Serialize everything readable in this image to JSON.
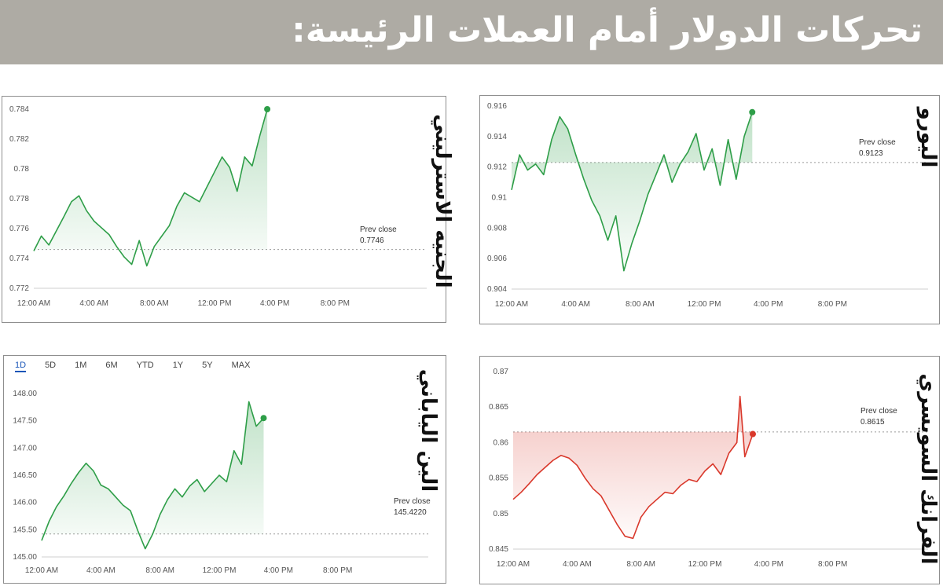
{
  "header": {
    "title": "تحركات الدولار أمام العملات الرئيسة:"
  },
  "colors": {
    "up": "#2e9e48",
    "down": "#d9382b",
    "banner": "#aeaba4"
  },
  "range_tabs": [
    "1D",
    "5D",
    "1M",
    "6M",
    "YTD",
    "1Y",
    "5Y",
    "MAX"
  ],
  "chart_data": [
    {
      "id": "gbp",
      "type": "line",
      "label": "الجنيه الاسترليني",
      "prev_close_label": "Prev close",
      "prev_close_text": "0.7746",
      "prev_close": 0.7746,
      "ylim": [
        0.772,
        0.784
      ],
      "yticks": [
        "0.772",
        "0.774",
        "0.776",
        "0.778",
        "0.78",
        "0.782",
        "0.784"
      ],
      "xticks": [
        "12:00 AM",
        "4:00 AM",
        "8:00 AM",
        "12:00 PM",
        "4:00 PM",
        "8:00 PM"
      ],
      "x_hours": [
        0,
        0.5,
        1,
        2,
        2.5,
        3,
        3.5,
        4,
        5,
        5.5,
        6,
        6.5,
        7,
        7.5,
        8,
        8.5,
        9,
        9.5,
        10,
        11,
        12,
        12.5,
        13,
        13.5,
        14,
        14.5,
        15,
        15.5
      ],
      "values": [
        0.7745,
        0.7755,
        0.7749,
        0.7768,
        0.7778,
        0.7782,
        0.7772,
        0.7765,
        0.7756,
        0.7748,
        0.7741,
        0.7736,
        0.7752,
        0.7735,
        0.7748,
        0.7755,
        0.7762,
        0.7775,
        0.7784,
        0.7778,
        0.7798,
        0.7808,
        0.7801,
        0.7785,
        0.7808,
        0.7802,
        0.7822,
        0.784
      ],
      "color": "up"
    },
    {
      "id": "eur",
      "type": "line",
      "label": "اليورو",
      "prev_close_label": "Prev close",
      "prev_close_text": "0.9123",
      "prev_close": 0.9123,
      "ylim": [
        0.904,
        0.916
      ],
      "yticks": [
        "0.904",
        "0.906",
        "0.908",
        "0.91",
        "0.912",
        "0.914",
        "0.916"
      ],
      "xticks": [
        "12:00 AM",
        "4:00 AM",
        "8:00 AM",
        "12:00 PM",
        "4:00 PM",
        "8:00 PM"
      ],
      "x_hours": [
        0,
        0.5,
        1,
        1.5,
        2,
        2.5,
        3,
        3.5,
        4,
        4.5,
        5,
        5.5,
        6,
        6.5,
        7,
        7.5,
        8,
        8.5,
        9,
        9.5,
        10,
        10.5,
        11,
        11.5,
        12,
        12.5,
        13,
        13.5,
        14,
        14.5,
        15
      ],
      "values": [
        0.9105,
        0.9128,
        0.9118,
        0.9122,
        0.9115,
        0.9138,
        0.9153,
        0.9145,
        0.9128,
        0.9112,
        0.9098,
        0.9088,
        0.9072,
        0.9088,
        0.9052,
        0.907,
        0.9085,
        0.9102,
        0.9115,
        0.9128,
        0.911,
        0.9122,
        0.913,
        0.9142,
        0.9118,
        0.9132,
        0.9108,
        0.9138,
        0.9112,
        0.914,
        0.9156
      ],
      "color": "up"
    },
    {
      "id": "jpy",
      "type": "line",
      "label": "الين الياباني",
      "prev_close_label": "Prev close",
      "prev_close_text": "145.4220",
      "prev_close": 145.422,
      "ylim": [
        145.0,
        148.0
      ],
      "yticks": [
        "145.00",
        "145.50",
        "146.00",
        "146.50",
        "147.00",
        "147.50",
        "148.00"
      ],
      "xticks": [
        "12:00 AM",
        "4:00 AM",
        "8:00 AM",
        "12:00 PM",
        "4:00 PM",
        "8:00 PM"
      ],
      "x_hours": [
        0,
        0.5,
        1,
        1.5,
        2,
        2.5,
        3,
        3.5,
        4,
        4.5,
        5,
        5.5,
        6,
        6.5,
        7,
        7.5,
        8,
        8.5,
        9,
        9.5,
        10,
        10.5,
        11,
        11.5,
        12,
        12.5,
        13,
        13.5,
        14,
        14.5,
        15
      ],
      "values": [
        145.3,
        145.65,
        145.92,
        146.12,
        146.35,
        146.55,
        146.72,
        146.58,
        146.32,
        146.25,
        146.1,
        145.95,
        145.85,
        145.48,
        145.15,
        145.42,
        145.78,
        146.05,
        146.25,
        146.1,
        146.3,
        146.42,
        146.2,
        146.35,
        146.5,
        146.38,
        146.95,
        146.7,
        147.85,
        147.4,
        147.55
      ],
      "color": "up"
    },
    {
      "id": "chf",
      "type": "line",
      "label": "الفرانك السويسري",
      "prev_close_label": "Prev close",
      "prev_close_text": "0.8615",
      "prev_close": 0.8615,
      "ylim": [
        0.845,
        0.87
      ],
      "yticks": [
        "0.845",
        "0.85",
        "0.855",
        "0.86",
        "0.865",
        "0.87"
      ],
      "xticks": [
        "12:00 AM",
        "4:00 AM",
        "8:00 AM",
        "12:00 PM",
        "4:00 PM",
        "8:00 PM"
      ],
      "x_hours": [
        0,
        0.5,
        1,
        1.5,
        2,
        2.5,
        3,
        3.5,
        4,
        4.5,
        5,
        5.5,
        6,
        6.5,
        7,
        7.5,
        8,
        8.5,
        9,
        9.5,
        10,
        10.5,
        11,
        11.5,
        12,
        12.5,
        13,
        13.5,
        14,
        14.2,
        14.5,
        15
      ],
      "values": [
        0.852,
        0.853,
        0.8542,
        0.8555,
        0.8565,
        0.8575,
        0.8582,
        0.8578,
        0.8568,
        0.855,
        0.8535,
        0.8525,
        0.8505,
        0.8485,
        0.8468,
        0.8465,
        0.8495,
        0.851,
        0.852,
        0.853,
        0.8528,
        0.854,
        0.8548,
        0.8545,
        0.856,
        0.857,
        0.8555,
        0.8585,
        0.86,
        0.8665,
        0.858,
        0.8612
      ],
      "color": "down"
    }
  ]
}
